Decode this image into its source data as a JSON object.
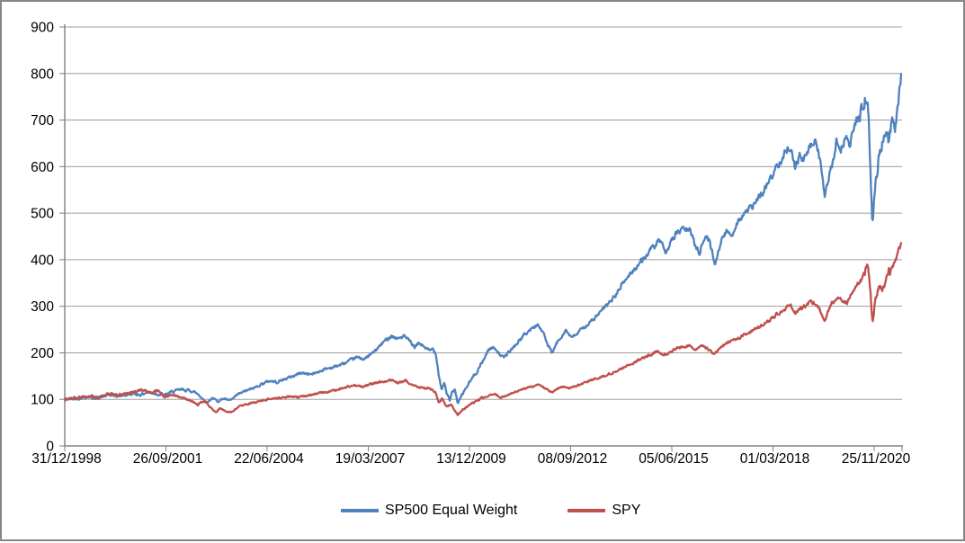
{
  "chart_data": {
    "type": "line",
    "title": "",
    "xlabel": "",
    "ylabel": "",
    "grid": true,
    "legend_position": "bottom",
    "colors": {
      "grid": "#9D9D9D",
      "axis": "#808080",
      "text": "#000000",
      "background": "#FFFFFF",
      "frame_border": "#868686"
    },
    "y_axis": {
      "min": 0,
      "max": 900,
      "step": 100,
      "tick_labels": [
        "0",
        "100",
        "200",
        "300",
        "400",
        "500",
        "600",
        "700",
        "800",
        "900"
      ]
    },
    "x_axis": {
      "type": "date-category",
      "tick_labels": [
        "31/12/1998",
        "26/09/2001",
        "22/06/2004",
        "19/03/2007",
        "13/12/2009",
        "08/09/2012",
        "05/06/2015",
        "01/03/2018",
        "25/11/2020"
      ]
    },
    "series": [
      {
        "name": "SP500 Equal Weight",
        "color": "#4F81BD",
        "points": [
          [
            0,
            100
          ],
          [
            0.0129,
            102
          ],
          [
            0.0269,
            106
          ],
          [
            0.0376,
            103
          ],
          [
            0.0516,
            109
          ],
          [
            0.0645,
            107
          ],
          [
            0.0806,
            112
          ],
          [
            0.0914,
            110
          ],
          [
            0.0989,
            116
          ],
          [
            0.1075,
            113
          ],
          [
            0.1183,
            108
          ],
          [
            0.129,
            117
          ],
          [
            0.1398,
            121
          ],
          [
            0.1484,
            119
          ],
          [
            0.1538,
            117
          ],
          [
            0.1602,
            110
          ],
          [
            0.1656,
            100
          ],
          [
            0.1699,
            93
          ],
          [
            0.1763,
            103
          ],
          [
            0.1828,
            96
          ],
          [
            0.1903,
            102
          ],
          [
            0.1968,
            97
          ],
          [
            0.2022,
            103
          ],
          [
            0.2075,
            111
          ],
          [
            0.2161,
            118
          ],
          [
            0.2258,
            124
          ],
          [
            0.2366,
            134
          ],
          [
            0.2452,
            140
          ],
          [
            0.2538,
            137
          ],
          [
            0.2634,
            144
          ],
          [
            0.2731,
            150
          ],
          [
            0.2817,
            157
          ],
          [
            0.2957,
            154
          ],
          [
            0.311,
            165
          ],
          [
            0.3226,
            170
          ],
          [
            0.3355,
            178
          ],
          [
            0.3484,
            190
          ],
          [
            0.3591,
            187
          ],
          [
            0.371,
            204
          ],
          [
            0.3817,
            224
          ],
          [
            0.3903,
            237
          ],
          [
            0.3978,
            230
          ],
          [
            0.4054,
            236
          ],
          [
            0.4129,
            224
          ],
          [
            0.4183,
            211
          ],
          [
            0.4237,
            221
          ],
          [
            0.4301,
            213
          ],
          [
            0.4355,
            203
          ],
          [
            0.4409,
            209
          ],
          [
            0.4441,
            196
          ],
          [
            0.4473,
            152
          ],
          [
            0.4505,
            122
          ],
          [
            0.4538,
            136
          ],
          [
            0.457,
            112
          ],
          [
            0.4602,
            97
          ],
          [
            0.4634,
            116
          ],
          [
            0.4667,
            121
          ],
          [
            0.4699,
            91
          ],
          [
            0.4742,
            106
          ],
          [
            0.4785,
            121
          ],
          [
            0.4839,
            136
          ],
          [
            0.4914,
            157
          ],
          [
            0.4989,
            178
          ],
          [
            0.5065,
            207
          ],
          [
            0.514,
            212
          ],
          [
            0.5194,
            198
          ],
          [
            0.5247,
            189
          ],
          [
            0.5312,
            202
          ],
          [
            0.5387,
            216
          ],
          [
            0.5484,
            237
          ],
          [
            0.557,
            250
          ],
          [
            0.5656,
            261
          ],
          [
            0.572,
            243
          ],
          [
            0.5774,
            217
          ],
          [
            0.5828,
            199
          ],
          [
            0.5882,
            221
          ],
          [
            0.5935,
            234
          ],
          [
            0.5989,
            250
          ],
          [
            0.6054,
            232
          ],
          [
            0.6118,
            240
          ],
          [
            0.6215,
            256
          ],
          [
            0.6312,
            270
          ],
          [
            0.6409,
            288
          ],
          [
            0.6495,
            305
          ],
          [
            0.6581,
            322
          ],
          [
            0.6667,
            348
          ],
          [
            0.6763,
            370
          ],
          [
            0.686,
            390
          ],
          [
            0.6957,
            410
          ],
          [
            0.7043,
            428
          ],
          [
            0.7129,
            442
          ],
          [
            0.7183,
            406
          ],
          [
            0.7247,
            443
          ],
          [
            0.7323,
            458
          ],
          [
            0.7409,
            467
          ],
          [
            0.7484,
            460
          ],
          [
            0.7548,
            428
          ],
          [
            0.7591,
            416
          ],
          [
            0.7656,
            450
          ],
          [
            0.771,
            441
          ],
          [
            0.7774,
            390
          ],
          [
            0.7839,
            437
          ],
          [
            0.7914,
            461
          ],
          [
            0.7978,
            453
          ],
          [
            0.8043,
            482
          ],
          [
            0.8129,
            500
          ],
          [
            0.8215,
            513
          ],
          [
            0.829,
            530
          ],
          [
            0.8376,
            554
          ],
          [
            0.8462,
            582
          ],
          [
            0.8548,
            612
          ],
          [
            0.8624,
            634
          ],
          [
            0.8677,
            645
          ],
          [
            0.8731,
            601
          ],
          [
            0.8785,
            622
          ],
          [
            0.8839,
            614
          ],
          [
            0.8892,
            638
          ],
          [
            0.8946,
            648
          ],
          [
            0.8989,
            654
          ],
          [
            0.9032,
            612
          ],
          [
            0.9086,
            534
          ],
          [
            0.9129,
            571
          ],
          [
            0.9172,
            601
          ],
          [
            0.9226,
            652
          ],
          [
            0.928,
            638
          ],
          [
            0.9333,
            662
          ],
          [
            0.9387,
            648
          ],
          [
            0.9441,
            688
          ],
          [
            0.9495,
            706
          ],
          [
            0.9538,
            728
          ],
          [
            0.9581,
            747
          ],
          [
            0.9602,
            754
          ],
          [
            0.9624,
            640
          ],
          [
            0.9656,
            470
          ],
          [
            0.9688,
            556
          ],
          [
            0.9731,
            618
          ],
          [
            0.9774,
            652
          ],
          [
            0.9817,
            678
          ],
          [
            0.9849,
            658
          ],
          [
            0.9892,
            701
          ],
          [
            0.9925,
            680
          ],
          [
            0.9957,
            722
          ],
          [
            1,
            799
          ]
        ]
      },
      {
        "name": "SPY",
        "color": "#C0504D",
        "points": [
          [
            0,
            100
          ],
          [
            0.0129,
            103
          ],
          [
            0.0269,
            108
          ],
          [
            0.0376,
            104
          ],
          [
            0.0516,
            111
          ],
          [
            0.0645,
            109
          ],
          [
            0.0753,
            114
          ],
          [
            0.086,
            117
          ],
          [
            0.0946,
            121
          ],
          [
            0.1032,
            114
          ],
          [
            0.1108,
            119
          ],
          [
            0.1204,
            105
          ],
          [
            0.128,
            111
          ],
          [
            0.1366,
            105
          ],
          [
            0.1452,
            100
          ],
          [
            0.1527,
            95
          ],
          [
            0.1591,
            88
          ],
          [
            0.1667,
            97
          ],
          [
            0.1731,
            86
          ],
          [
            0.1806,
            72
          ],
          [
            0.186,
            81
          ],
          [
            0.1925,
            74
          ],
          [
            0.1989,
            72
          ],
          [
            0.2065,
            83
          ],
          [
            0.2151,
            89
          ],
          [
            0.2258,
            93
          ],
          [
            0.2366,
            98
          ],
          [
            0.2473,
            102
          ],
          [
            0.258,
            103
          ],
          [
            0.2688,
            106
          ],
          [
            0.2796,
            104
          ],
          [
            0.2925,
            110
          ],
          [
            0.3065,
            114
          ],
          [
            0.3194,
            118
          ],
          [
            0.3323,
            124
          ],
          [
            0.3452,
            130
          ],
          [
            0.3559,
            127
          ],
          [
            0.3667,
            133
          ],
          [
            0.3785,
            138
          ],
          [
            0.3903,
            142
          ],
          [
            0.3989,
            135
          ],
          [
            0.4075,
            140
          ],
          [
            0.4161,
            131
          ],
          [
            0.4237,
            127
          ],
          [
            0.4312,
            124
          ],
          [
            0.4376,
            121
          ],
          [
            0.443,
            113
          ],
          [
            0.4473,
            92
          ],
          [
            0.4516,
            101
          ],
          [
            0.4559,
            84
          ],
          [
            0.4613,
            90
          ],
          [
            0.4656,
            79
          ],
          [
            0.4699,
            67
          ],
          [
            0.4753,
            77
          ],
          [
            0.4817,
            85
          ],
          [
            0.4892,
            93
          ],
          [
            0.4978,
            101
          ],
          [
            0.5065,
            107
          ],
          [
            0.514,
            112
          ],
          [
            0.5215,
            104
          ],
          [
            0.529,
            109
          ],
          [
            0.5376,
            115
          ],
          [
            0.5484,
            122
          ],
          [
            0.5591,
            128
          ],
          [
            0.5667,
            132
          ],
          [
            0.5742,
            124
          ],
          [
            0.5828,
            114
          ],
          [
            0.5892,
            123
          ],
          [
            0.5968,
            128
          ],
          [
            0.6043,
            124
          ],
          [
            0.614,
            131
          ],
          [
            0.6237,
            137
          ],
          [
            0.6344,
            144
          ],
          [
            0.6452,
            151
          ],
          [
            0.657,
            159
          ],
          [
            0.6688,
            169
          ],
          [
            0.6817,
            180
          ],
          [
            0.6946,
            192
          ],
          [
            0.7075,
            202
          ],
          [
            0.7183,
            195
          ],
          [
            0.7269,
            206
          ],
          [
            0.7376,
            213
          ],
          [
            0.7473,
            216
          ],
          [
            0.7538,
            206
          ],
          [
            0.7613,
            213
          ],
          [
            0.7688,
            209
          ],
          [
            0.7774,
            198
          ],
          [
            0.7849,
            214
          ],
          [
            0.7935,
            222
          ],
          [
            0.8022,
            228
          ],
          [
            0.8108,
            236
          ],
          [
            0.8204,
            246
          ],
          [
            0.829,
            254
          ],
          [
            0.8387,
            265
          ],
          [
            0.8473,
            277
          ],
          [
            0.8559,
            290
          ],
          [
            0.8624,
            297
          ],
          [
            0.8677,
            303
          ],
          [
            0.8731,
            284
          ],
          [
            0.8796,
            294
          ],
          [
            0.886,
            302
          ],
          [
            0.8925,
            311
          ],
          [
            0.8978,
            305
          ],
          [
            0.9032,
            290
          ],
          [
            0.9086,
            271
          ],
          [
            0.914,
            296
          ],
          [
            0.9194,
            312
          ],
          [
            0.9247,
            322
          ],
          [
            0.9301,
            313
          ],
          [
            0.9355,
            305
          ],
          [
            0.9409,
            330
          ],
          [
            0.9462,
            345
          ],
          [
            0.9505,
            352
          ],
          [
            0.9548,
            368
          ],
          [
            0.958,
            381
          ],
          [
            0.9602,
            394
          ],
          [
            0.9634,
            330
          ],
          [
            0.9656,
            268
          ],
          [
            0.9688,
            310
          ],
          [
            0.972,
            336
          ],
          [
            0.9753,
            348
          ],
          [
            0.9785,
            336
          ],
          [
            0.9817,
            358
          ],
          [
            0.9849,
            382
          ],
          [
            0.9871,
            372
          ],
          [
            0.9903,
            388
          ],
          [
            0.9935,
            403
          ],
          [
            0.9968,
            420
          ],
          [
            1,
            436
          ]
        ]
      }
    ]
  }
}
